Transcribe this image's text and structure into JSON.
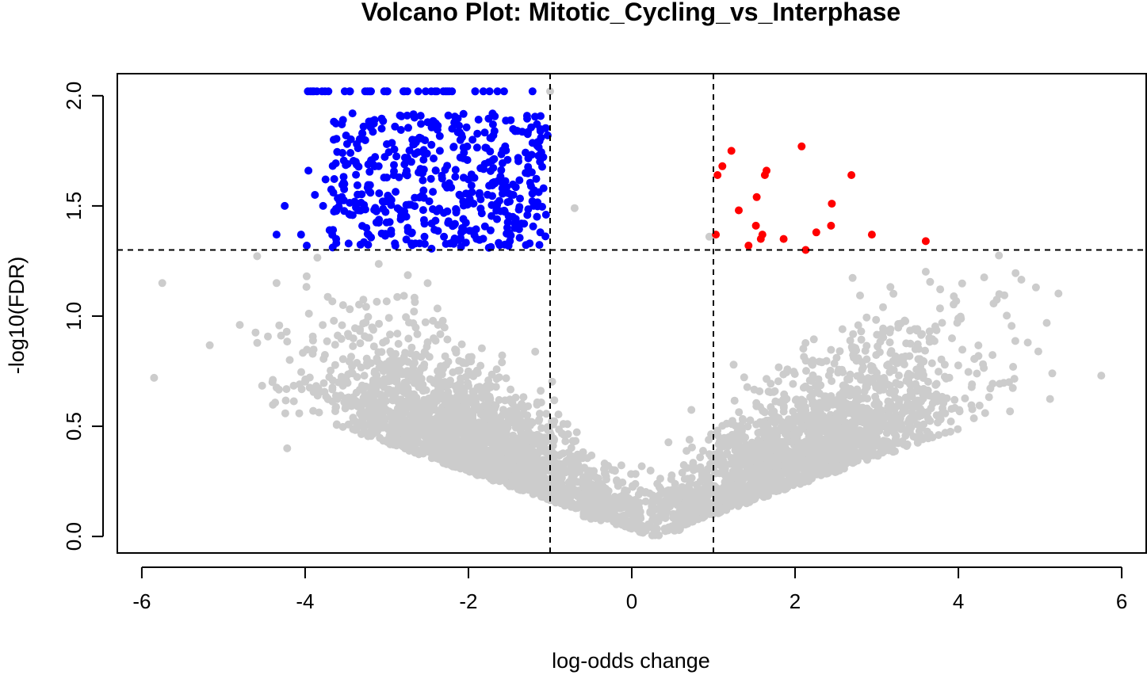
{
  "chart_data": {
    "type": "scatter",
    "title": "Volcano Plot: Mitotic_Cycling_vs_Interphase",
    "xlabel": "log-odds change",
    "ylabel": "-log10(FDR)",
    "xlim": [
      -6.3,
      6.3
    ],
    "ylim": [
      -0.075,
      2.1
    ],
    "x_ticks": [
      -6,
      -4,
      -2,
      0,
      2,
      4,
      6
    ],
    "x_tick_labels": [
      "-6",
      "-4",
      "-2",
      "0",
      "2",
      "4",
      "6"
    ],
    "y_ticks": [
      0.0,
      0.5,
      1.0,
      1.5,
      2.0
    ],
    "y_tick_labels": [
      "0.0",
      "0.5",
      "1.0",
      "1.5",
      "2.0"
    ],
    "thresholds": {
      "x": [
        -1,
        1
      ],
      "y": 1.3
    },
    "grid": false,
    "legend": "none",
    "colors": {
      "down": "#0000ff",
      "up": "#ff0000",
      "ns": "#cccccc",
      "threshold_line": "#000000"
    },
    "series": [
      {
        "group": "up",
        "points": [
          [
            1.05,
            1.64
          ],
          [
            1.11,
            1.68
          ],
          [
            1.22,
            1.75
          ],
          [
            1.03,
            1.37
          ],
          [
            1.31,
            1.48
          ],
          [
            1.43,
            1.32
          ],
          [
            1.52,
            1.41
          ],
          [
            1.53,
            1.54
          ],
          [
            1.58,
            1.35
          ],
          [
            1.6,
            1.37
          ],
          [
            1.63,
            1.64
          ],
          [
            1.65,
            1.66
          ],
          [
            1.86,
            1.35
          ],
          [
            2.08,
            1.77
          ],
          [
            2.13,
            1.3
          ],
          [
            2.26,
            1.38
          ],
          [
            2.44,
            1.41
          ],
          [
            2.45,
            1.51
          ],
          [
            2.69,
            1.64
          ],
          [
            2.94,
            1.37
          ],
          [
            3.6,
            1.34
          ]
        ]
      },
      {
        "group": "down",
        "points": [
          [
            -4.35,
            1.37
          ],
          [
            -4.25,
            1.5
          ],
          [
            -4.05,
            1.37
          ],
          [
            -3.98,
            1.32
          ],
          [
            -3.96,
            1.66
          ],
          [
            -3.88,
            1.55
          ],
          [
            -3.78,
            1.5
          ],
          [
            -3.75,
            1.62
          ],
          [
            -3.7,
            1.39
          ],
          [
            -3.65,
            1.8
          ],
          [
            -3.62,
            1.35
          ],
          [
            -3.55,
            1.87
          ],
          [
            -3.52,
            1.6
          ],
          [
            -3.48,
            1.69
          ],
          [
            -3.42,
            1.92
          ],
          [
            -3.38,
            1.7
          ],
          [
            -3.35,
            1.48
          ],
          [
            -3.3,
            1.83
          ],
          [
            -3.25,
            1.4
          ],
          [
            -3.2,
            1.56
          ],
          [
            -3.15,
            1.89
          ],
          [
            -3.1,
            1.68
          ],
          [
            -3.05,
            1.52
          ],
          [
            -3.0,
            1.78
          ],
          [
            -2.95,
            1.38
          ],
          [
            -2.9,
            1.86
          ],
          [
            -2.85,
            1.63
          ],
          [
            -2.8,
            1.45
          ],
          [
            -2.75,
            1.91
          ],
          [
            -2.7,
            1.7
          ],
          [
            -2.65,
            1.33
          ],
          [
            -2.6,
            1.81
          ],
          [
            -2.55,
            1.57
          ],
          [
            -2.5,
            1.88
          ],
          [
            -2.45,
            1.42
          ],
          [
            -2.4,
            1.66
          ],
          [
            -2.35,
            1.75
          ],
          [
            -2.3,
            1.36
          ],
          [
            -2.25,
            1.59
          ],
          [
            -2.2,
            1.85
          ],
          [
            -2.15,
            1.47
          ],
          [
            -2.1,
            1.72
          ],
          [
            -2.05,
            1.39
          ],
          [
            -2.0,
            1.62
          ],
          [
            -1.95,
            1.8
          ],
          [
            -1.9,
            1.35
          ],
          [
            -1.85,
            1.53
          ],
          [
            -1.8,
            1.69
          ],
          [
            -1.75,
            1.31
          ],
          [
            -1.7,
            1.87
          ],
          [
            -1.65,
            1.44
          ],
          [
            -1.6,
            1.61
          ],
          [
            -1.55,
            1.77
          ],
          [
            -1.5,
            1.37
          ],
          [
            -1.45,
            1.55
          ],
          [
            -1.4,
            1.84
          ],
          [
            -1.35,
            1.42
          ],
          [
            -1.3,
            1.65
          ],
          [
            -1.25,
            1.33
          ],
          [
            -1.2,
            1.5
          ],
          [
            -1.15,
            1.79
          ],
          [
            -1.12,
            1.38
          ],
          [
            -1.08,
            1.58
          ],
          [
            -1.05,
            1.46
          ],
          [
            -1.03,
            1.82
          ]
        ]
      }
    ]
  }
}
